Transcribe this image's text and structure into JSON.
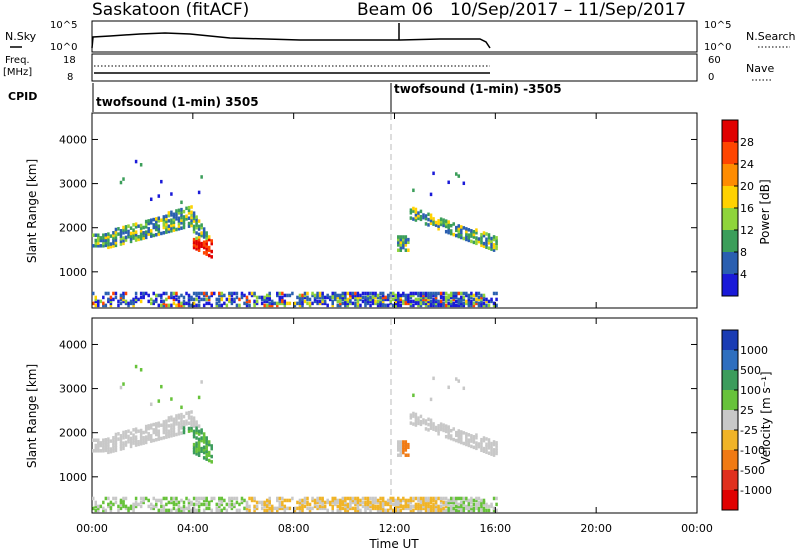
{
  "header": {
    "station": "Saskatoon (fitACF)",
    "beam": "Beam 06",
    "date_range": "10/Sep/2017 – 11/Sep/2017"
  },
  "top_panels": {
    "nsky_label": "N.Sky",
    "nsearch_label": "N.Search",
    "ylog_top": "10^5",
    "ylog_bottom": "10^0",
    "freq_label": "Freq.",
    "freq_unit": "[MHz]",
    "freq_ticks": [
      "18",
      "8"
    ],
    "nave_label": "Nave",
    "nave_ticks": [
      "60",
      "0"
    ],
    "cpid_label": "CPID",
    "cpid_segments": [
      {
        "label": "twofsound (1-min) 3505",
        "start_hour": 0
      },
      {
        "label": "twofsound (1-min) -3505",
        "start_hour": 12
      }
    ]
  },
  "chart_data": [
    {
      "type": "heatmap",
      "name": "power",
      "ylabel": "Slant Range [km]",
      "xlim": [
        0,
        24
      ],
      "ylim": [
        180,
        4600
      ],
      "yticks": [
        1000,
        2000,
        3000,
        4000
      ],
      "colorbar_label": "Power [dB]",
      "colorbar_ticks": [
        "28",
        "24",
        "20",
        "16",
        "12",
        "8",
        "4"
      ],
      "colorbar_colors": [
        "#e00000",
        "#ff4500",
        "#ff8c00",
        "#ffd200",
        "#8fd43a",
        "#3b9e5a",
        "#2a5fb0",
        "#1a1ad8"
      ],
      "scatter_regions": [
        {
          "hours": [
            0.0,
            4.7
          ],
          "range_km": [
            1300,
            2500
          ],
          "level": "mid-high, peak 28 dB near 04:30 / 1450 km"
        },
        {
          "hours": [
            12.0,
            16.0
          ],
          "range_km": [
            1300,
            2500
          ],
          "level": "mid"
        },
        {
          "hours": [
            0.0,
            16.0
          ],
          "range_km": [
            180,
            500
          ],
          "level": "ground scatter band"
        }
      ]
    },
    {
      "type": "heatmap",
      "name": "velocity",
      "ylabel": "Slant Range [km]",
      "xlabel": "Time UT",
      "xlim": [
        0,
        24
      ],
      "ylim": [
        180,
        4600
      ],
      "yticks": [
        1000,
        2000,
        3000,
        4000
      ],
      "xticks": [
        "00:00",
        "04:00",
        "08:00",
        "12:00",
        "16:00",
        "20:00",
        "00:00"
      ],
      "colorbar_label": "Velocity [m s⁻¹]",
      "colorbar_ticks": [
        "1000",
        "500",
        "100",
        "25",
        "-25",
        "-100",
        "-500",
        "-1000"
      ],
      "colorbar_colors": [
        "#1a3cb4",
        "#2f6fbf",
        "#3c9c5c",
        "#67c23a",
        "#c8c8c8",
        "#f0b428",
        "#f07a14",
        "#e0301e",
        "#e00000"
      ],
      "scatter_regions": [
        {
          "hours": [
            0.0,
            4.7
          ],
          "range_km": [
            1300,
            2500
          ],
          "level": "mostly ±25 (gray), green near 04:30"
        },
        {
          "hours": [
            12.0,
            16.0
          ],
          "range_km": [
            1300,
            2500
          ],
          "level": "±25 (gray)"
        },
        {
          "hours": [
            0.0,
            16.0
          ],
          "range_km": [
            180,
            500
          ],
          "level": "yellow/green ground scatter"
        }
      ]
    }
  ]
}
